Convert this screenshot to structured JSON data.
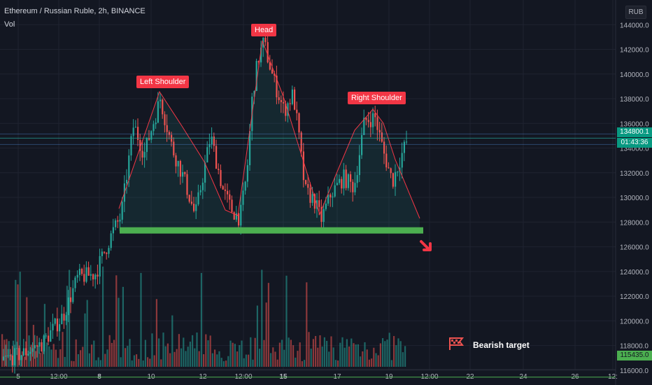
{
  "header": {
    "title": "Ethereum / Russian Ruble, 2h, BINANCE",
    "indicator": "Vol",
    "currency": "RUB"
  },
  "annotations": {
    "head": "Head",
    "left_shoulder": "Left Shoulder",
    "right_shoulder": "Right Shoulder",
    "bearish_target": "Bearish target"
  },
  "price_labels": {
    "last_price": "134800.1",
    "countdown": "01:43:36",
    "target_price": "115435.0"
  },
  "colors": {
    "background": "#131722",
    "up": "#26a69a",
    "down": "#ef5350",
    "pattern_line": "#f23645",
    "neckline": "#4caf50",
    "pattern_fill": "#26a69a"
  },
  "chart_data": {
    "type": "candlestick",
    "y_ticks": [
      144000,
      142000,
      140000,
      138000,
      136000,
      134000,
      132000,
      130000,
      128000,
      126000,
      124000,
      122000,
      120000,
      118000,
      116000
    ],
    "y_tick_labels": [
      "144000.0",
      "142000.0",
      "140000.0",
      "138000.0",
      "136000.0",
      "134000.0",
      "132000.0",
      "130000.0",
      "128000.0",
      "126000.0",
      "124000.0",
      "122000.0",
      "120000.0",
      "118000.0",
      "116000.0"
    ],
    "x_tick_labels": [
      "5",
      "12:00",
      "8",
      "10",
      "12",
      "12:00",
      "15",
      "17",
      "19",
      "12:00",
      "22",
      "24",
      "26",
      "12:"
    ],
    "y_range": [
      114800,
      146000
    ],
    "last_price": 134800.1,
    "neckline_price": 127300,
    "head_price": 142900,
    "left_shoulder_price": 138200,
    "right_shoulder_price": 136900,
    "bearish_target_price": 115435.0
  }
}
